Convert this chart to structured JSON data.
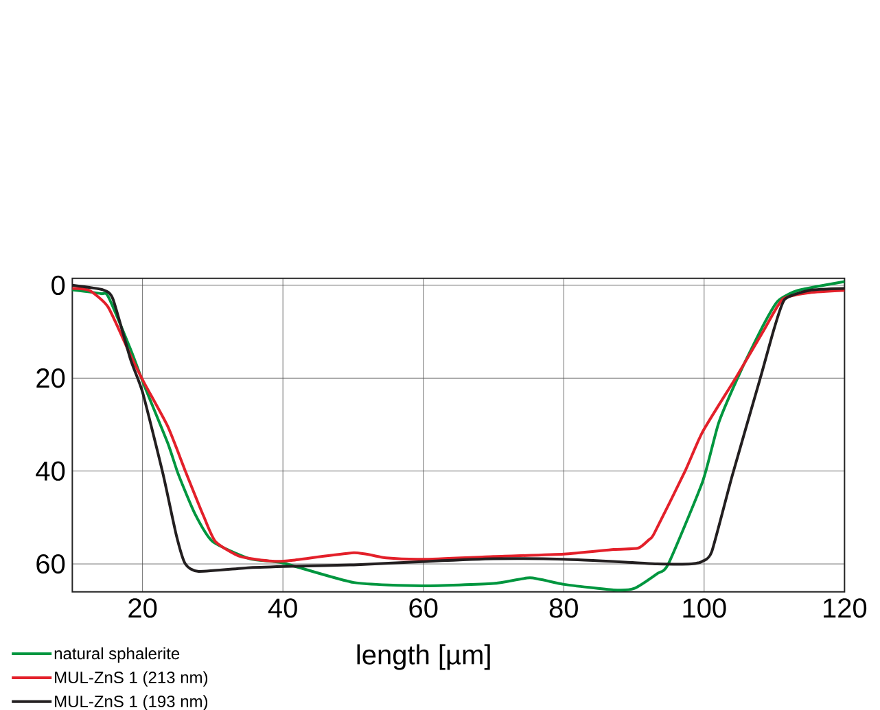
{
  "chart_data": {
    "type": "line",
    "xlabel": "length [µm]",
    "xlim": [
      10,
      120
    ],
    "xticks": [
      20,
      40,
      60,
      80,
      100,
      120
    ],
    "ylim": [
      66,
      -1.5
    ],
    "yticks": [
      0,
      20,
      40,
      60
    ],
    "grid": true,
    "legend": "bottom left",
    "marker": "none",
    "line_style": "solid",
    "series": [
      {
        "name": "natural sphalerite",
        "color": "#00963f",
        "x": [
          10,
          14.1,
          15.1,
          18.3,
          20.2,
          23.6,
          25.1,
          27.5,
          30,
          35.3,
          40,
          50.1,
          59.9,
          70,
          75.2,
          80,
          87.1,
          90,
          93.3,
          94.9,
          99.8,
          102.1,
          105.3,
          108.5,
          110.5,
          113.4,
          120
        ],
        "values": [
          1,
          1.8,
          2.4,
          13.8,
          21.4,
          34,
          40.7,
          49.3,
          55.2,
          58.9,
          59.8,
          64,
          64.7,
          64.2,
          63,
          64.4,
          65.6,
          65.3,
          62.1,
          60,
          42.2,
          29.5,
          18.2,
          8.4,
          3.4,
          1.1,
          -0.8
        ]
      },
      {
        "name": "MUL-ZnS 1 (213 nm)",
        "color": "#e3202a",
        "x": [
          10,
          12.4,
          15.1,
          18.3,
          20.2,
          23.6,
          26.1,
          28.7,
          30.4,
          33.9,
          38.5,
          41.4,
          50.1,
          54.7,
          59.9,
          70,
          80,
          87.1,
          90.6,
          92.2,
          92.9,
          97.2,
          99.8,
          104.6,
          108.5,
          111.2,
          115,
          120
        ],
        "values": [
          0.7,
          1.1,
          4.7,
          15.1,
          20.9,
          30.4,
          40,
          49.7,
          55.2,
          58.4,
          59.4,
          59.2,
          57.6,
          58.7,
          59,
          58.4,
          57.9,
          56.9,
          56.6,
          54.7,
          53.4,
          40.3,
          31.5,
          19.7,
          9.7,
          3,
          1.6,
          1.1
        ]
      },
      {
        "name": "MUL-ZnS 1 (193 nm)",
        "color": "#231f20",
        "x": [
          10,
          14.4,
          15.8,
          18.3,
          20,
          22.9,
          24.8,
          26.1,
          28,
          35.3,
          41.4,
          50.1,
          59.9,
          70,
          80,
          89.8,
          93.3,
          98.2,
          99.8,
          101.1,
          104,
          108,
          110,
          111.5,
          115,
          120
        ],
        "values": [
          0,
          1,
          3,
          16,
          23,
          40.5,
          53.7,
          60,
          61.6,
          60.8,
          60.5,
          60.2,
          59.5,
          58.9,
          59,
          59.7,
          60,
          60,
          59.4,
          57.3,
          41,
          20,
          9.2,
          3,
          1.1,
          0.7
        ]
      }
    ]
  }
}
